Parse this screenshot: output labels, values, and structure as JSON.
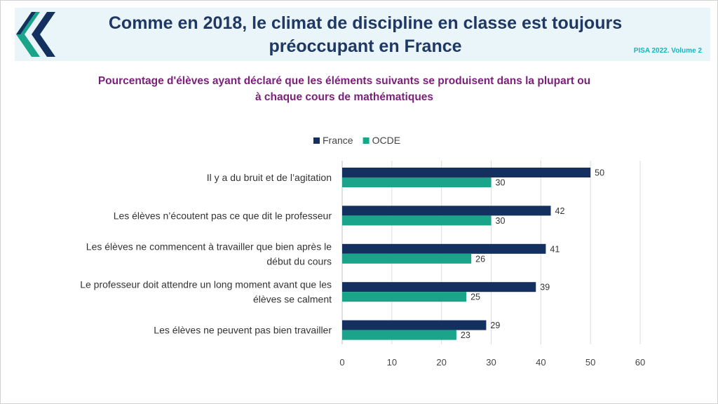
{
  "header": {
    "title_line1": "Comme en 2018, le climat de discipline en classe est toujours",
    "title_line2": "préoccupant en France",
    "source": "PISA 2022. Volume 2"
  },
  "colors": {
    "france": "#13305f",
    "ocde": "#1aa58a",
    "title": "#1f3864",
    "subtitle": "#7b1f7a",
    "source": "#17b3c0",
    "header_band": "#e9f5f9"
  },
  "chart_data": {
    "type": "bar",
    "orientation": "horizontal",
    "title_line1": "Pourcentage d'élèves ayant déclaré que les éléments suivants se produisent dans la plupart ou",
    "title_line2": "à chaque cours de mathématiques",
    "categories": [
      [
        "Il y a du bruit et de l’agitation"
      ],
      [
        "Les élèves n’écoutent pas ce que dit le professeur"
      ],
      [
        "Les élèves ne commencent à travailler que bien après le",
        "début du cours"
      ],
      [
        "Le professeur doit attendre un long moment avant que les",
        "élèves se calment"
      ],
      [
        "Les élèves ne peuvent pas bien travailler"
      ]
    ],
    "series": [
      {
        "name": "France",
        "values": [
          50,
          42,
          41,
          39,
          29
        ]
      },
      {
        "name": "OCDE",
        "values": [
          30,
          30,
          26,
          25,
          23
        ]
      }
    ],
    "xlim": [
      0,
      60
    ],
    "xticks": [
      0,
      10,
      20,
      30,
      40,
      50,
      60
    ],
    "legend_position": "top",
    "grid": true
  }
}
